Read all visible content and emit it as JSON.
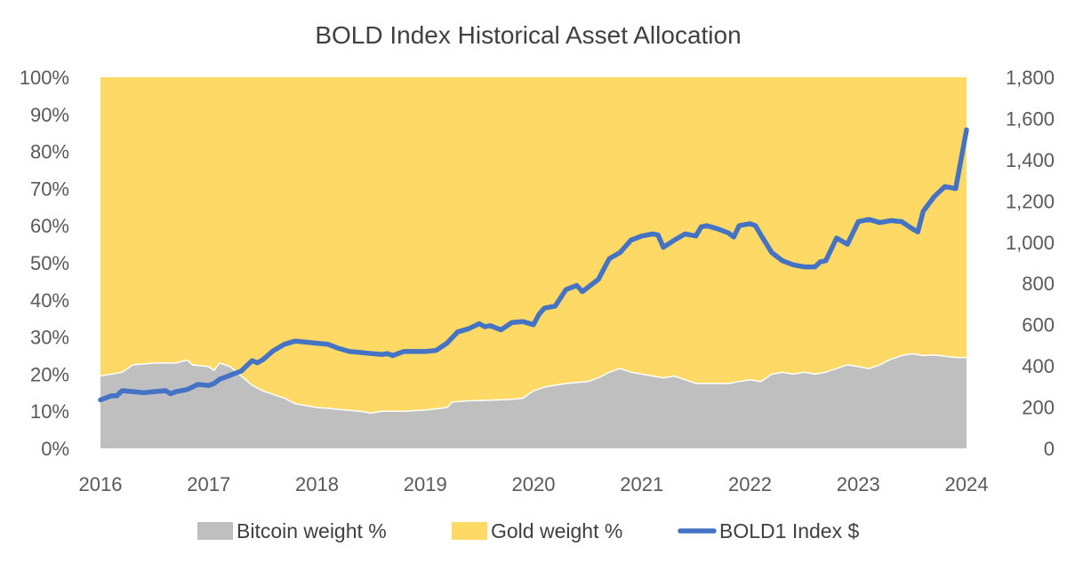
{
  "chart_data": {
    "type": "area",
    "title": "BOLD Index Historical Asset Allocation",
    "x_ticks": [
      "2016",
      "2017",
      "2018",
      "2019",
      "2020",
      "2021",
      "2022",
      "2023",
      "2024"
    ],
    "y_left_ticks": [
      "0%",
      "10%",
      "20%",
      "30%",
      "40%",
      "50%",
      "60%",
      "70%",
      "80%",
      "90%",
      "100%"
    ],
    "y_left_range": [
      0,
      100
    ],
    "y_right_ticks": [
      "0",
      "200",
      "400",
      "600",
      "800",
      "1,000",
      "1,200",
      "1,400",
      "1,600",
      "1,800"
    ],
    "y_right_range": [
      0,
      1800
    ],
    "x_range": [
      2016,
      2024
    ],
    "series": [
      {
        "name": "Bitcoin weight %",
        "color": "#bfbfbf",
        "axis": "left",
        "points": [
          [
            2016.0,
            19.5
          ],
          [
            2016.2,
            20.5
          ],
          [
            2016.3,
            22.5
          ],
          [
            2016.5,
            23.0
          ],
          [
            2016.7,
            23.0
          ],
          [
            2016.8,
            23.8
          ],
          [
            2016.85,
            22.5
          ],
          [
            2017.0,
            22.0
          ],
          [
            2017.05,
            21.0
          ],
          [
            2017.1,
            23.0
          ],
          [
            2017.2,
            22.0
          ],
          [
            2017.3,
            19.5
          ],
          [
            2017.4,
            17.0
          ],
          [
            2017.5,
            15.5
          ],
          [
            2017.6,
            14.5
          ],
          [
            2017.7,
            13.5
          ],
          [
            2017.8,
            12.0
          ],
          [
            2017.9,
            11.5
          ],
          [
            2018.0,
            11.0
          ],
          [
            2018.1,
            10.8
          ],
          [
            2018.2,
            10.5
          ],
          [
            2018.4,
            10.0
          ],
          [
            2018.5,
            9.5
          ],
          [
            2018.6,
            10.0
          ],
          [
            2018.8,
            10.0
          ],
          [
            2019.0,
            10.3
          ],
          [
            2019.2,
            11.0
          ],
          [
            2019.25,
            12.5
          ],
          [
            2019.4,
            12.8
          ],
          [
            2019.6,
            13.0
          ],
          [
            2019.8,
            13.2
          ],
          [
            2019.9,
            13.5
          ],
          [
            2020.0,
            15.5
          ],
          [
            2020.1,
            16.5
          ],
          [
            2020.2,
            17.0
          ],
          [
            2020.3,
            17.5
          ],
          [
            2020.5,
            18.0
          ],
          [
            2020.6,
            19.0
          ],
          [
            2020.7,
            20.5
          ],
          [
            2020.8,
            21.5
          ],
          [
            2020.9,
            20.5
          ],
          [
            2021.0,
            20.0
          ],
          [
            2021.1,
            19.5
          ],
          [
            2021.2,
            19.0
          ],
          [
            2021.3,
            19.5
          ],
          [
            2021.4,
            18.5
          ],
          [
            2021.5,
            17.5
          ],
          [
            2021.6,
            17.5
          ],
          [
            2021.8,
            17.5
          ],
          [
            2021.9,
            18.0
          ],
          [
            2022.0,
            18.5
          ],
          [
            2022.1,
            18.0
          ],
          [
            2022.2,
            20.0
          ],
          [
            2022.3,
            20.5
          ],
          [
            2022.4,
            20.0
          ],
          [
            2022.5,
            20.5
          ],
          [
            2022.6,
            20.0
          ],
          [
            2022.7,
            20.5
          ],
          [
            2022.8,
            21.5
          ],
          [
            2022.9,
            22.5
          ],
          [
            2023.0,
            22.0
          ],
          [
            2023.1,
            21.5
          ],
          [
            2023.2,
            22.5
          ],
          [
            2023.3,
            24.0
          ],
          [
            2023.4,
            25.0
          ],
          [
            2023.5,
            25.5
          ],
          [
            2023.6,
            25.0
          ],
          [
            2023.7,
            25.2
          ],
          [
            2023.8,
            24.8
          ],
          [
            2023.9,
            24.5
          ],
          [
            2024.0,
            24.5
          ]
        ]
      },
      {
        "name": "Gold weight %",
        "color": "#ffd966",
        "axis": "left",
        "fill_to": 100
      },
      {
        "name": "BOLD1 Index $",
        "color": "#4472c4",
        "axis": "right",
        "points": [
          [
            2016.0,
            235
          ],
          [
            2016.1,
            255
          ],
          [
            2016.15,
            255
          ],
          [
            2016.2,
            280
          ],
          [
            2016.3,
            275
          ],
          [
            2016.4,
            270
          ],
          [
            2016.5,
            275
          ],
          [
            2016.6,
            280
          ],
          [
            2016.65,
            265
          ],
          [
            2016.7,
            275
          ],
          [
            2016.8,
            285
          ],
          [
            2016.9,
            310
          ],
          [
            2017.0,
            305
          ],
          [
            2017.05,
            315
          ],
          [
            2017.1,
            335
          ],
          [
            2017.2,
            355
          ],
          [
            2017.3,
            375
          ],
          [
            2017.4,
            425
          ],
          [
            2017.45,
            415
          ],
          [
            2017.5,
            430
          ],
          [
            2017.6,
            475
          ],
          [
            2017.7,
            505
          ],
          [
            2017.8,
            520
          ],
          [
            2017.9,
            515
          ],
          [
            2018.0,
            510
          ],
          [
            2018.1,
            505
          ],
          [
            2018.2,
            485
          ],
          [
            2018.3,
            470
          ],
          [
            2018.4,
            465
          ],
          [
            2018.5,
            460
          ],
          [
            2018.6,
            455
          ],
          [
            2018.65,
            460
          ],
          [
            2018.7,
            450
          ],
          [
            2018.8,
            470
          ],
          [
            2018.9,
            470
          ],
          [
            2019.0,
            470
          ],
          [
            2019.1,
            475
          ],
          [
            2019.2,
            510
          ],
          [
            2019.3,
            565
          ],
          [
            2019.4,
            580
          ],
          [
            2019.5,
            605
          ],
          [
            2019.55,
            590
          ],
          [
            2019.6,
            595
          ],
          [
            2019.7,
            575
          ],
          [
            2019.8,
            610
          ],
          [
            2019.9,
            615
          ],
          [
            2020.0,
            600
          ],
          [
            2020.05,
            650
          ],
          [
            2020.1,
            680
          ],
          [
            2020.2,
            690
          ],
          [
            2020.3,
            770
          ],
          [
            2020.4,
            790
          ],
          [
            2020.45,
            760
          ],
          [
            2020.5,
            780
          ],
          [
            2020.6,
            820
          ],
          [
            2020.7,
            920
          ],
          [
            2020.8,
            950
          ],
          [
            2020.9,
            1010
          ],
          [
            2021.0,
            1030
          ],
          [
            2021.1,
            1040
          ],
          [
            2021.15,
            1035
          ],
          [
            2021.2,
            975
          ],
          [
            2021.3,
            1010
          ],
          [
            2021.4,
            1040
          ],
          [
            2021.5,
            1030
          ],
          [
            2021.55,
            1075
          ],
          [
            2021.6,
            1080
          ],
          [
            2021.7,
            1065
          ],
          [
            2021.8,
            1045
          ],
          [
            2021.85,
            1025
          ],
          [
            2021.9,
            1080
          ],
          [
            2022.0,
            1090
          ],
          [
            2022.05,
            1080
          ],
          [
            2022.1,
            1035
          ],
          [
            2022.2,
            950
          ],
          [
            2022.3,
            910
          ],
          [
            2022.4,
            890
          ],
          [
            2022.5,
            880
          ],
          [
            2022.6,
            880
          ],
          [
            2022.65,
            905
          ],
          [
            2022.7,
            910
          ],
          [
            2022.8,
            1020
          ],
          [
            2022.9,
            990
          ],
          [
            2023.0,
            1100
          ],
          [
            2023.1,
            1110
          ],
          [
            2023.2,
            1095
          ],
          [
            2023.3,
            1105
          ],
          [
            2023.4,
            1100
          ],
          [
            2023.5,
            1065
          ],
          [
            2023.55,
            1050
          ],
          [
            2023.6,
            1150
          ],
          [
            2023.7,
            1220
          ],
          [
            2023.8,
            1270
          ],
          [
            2023.9,
            1260
          ],
          [
            2024.0,
            1545
          ]
        ]
      }
    ],
    "legend": [
      {
        "label": "Bitcoin weight %",
        "color": "#bfbfbf",
        "kind": "box"
      },
      {
        "label": "Gold weight %",
        "color": "#ffd966",
        "kind": "box"
      },
      {
        "label": "BOLD1 Index $",
        "color": "#4472c4",
        "kind": "line"
      }
    ],
    "legend_position": "bottom"
  }
}
